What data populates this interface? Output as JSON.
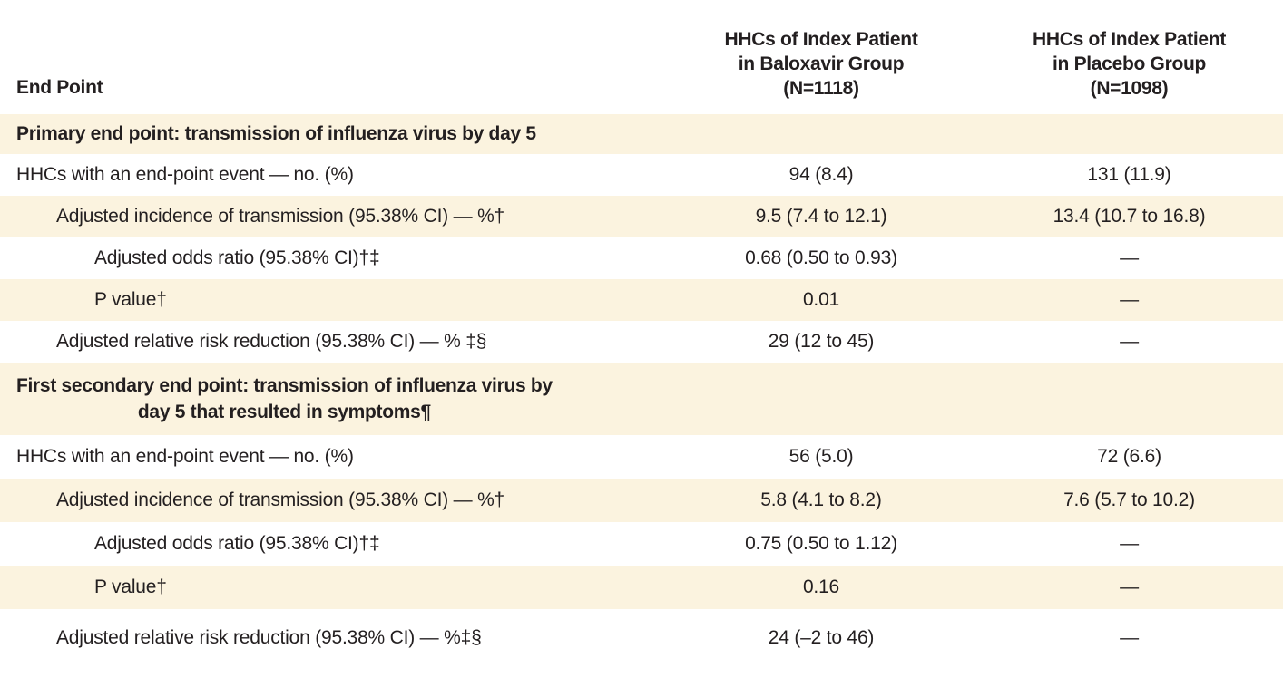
{
  "colors": {
    "row_stripe": "#FBF3DF",
    "text": "#231F20",
    "background": "#FFFFFF"
  },
  "table": {
    "columns": {
      "end_point": "End Point",
      "baloxavir": "HHCs of Index Patient\nin Baloxavir Group\n(N=1118)",
      "placebo": "HHCs of Index Patient\nin Placebo Group\n(N=1098)"
    },
    "rows": [
      {
        "label": "Primary end point: transmission of influenza virus by day 5",
        "baloxavir": "",
        "placebo": ""
      },
      {
        "label": "HHCs with an end-point event — no. (%)",
        "baloxavir": "94 (8.4)",
        "placebo": "131 (11.9)"
      },
      {
        "label": "Adjusted incidence of transmission (95.38% CI) — %†",
        "baloxavir": "9.5 (7.4 to 12.1)",
        "placebo": "13.4 (10.7 to 16.8)"
      },
      {
        "label": "Adjusted odds ratio (95.38% CI)†‡",
        "baloxavir": "0.68 (0.50 to 0.93)",
        "placebo": "—"
      },
      {
        "label": "P value†",
        "baloxavir": "0.01",
        "placebo": "—"
      },
      {
        "label": "Adjusted relative risk reduction (95.38% CI) — % ‡§",
        "baloxavir": "29 (12 to 45)",
        "placebo": "—"
      },
      {
        "label": "First secondary end point: transmission of influenza virus by\nday 5 that resulted in symptoms¶",
        "baloxavir": "",
        "placebo": ""
      },
      {
        "label": "HHCs with an end-point event — no. (%)",
        "baloxavir": "56 (5.0)",
        "placebo": "72 (6.6)"
      },
      {
        "label": "Adjusted incidence of transmission (95.38% CI) — %†",
        "baloxavir": "5.8 (4.1 to 8.2)",
        "placebo": "7.6 (5.7 to 10.2)"
      },
      {
        "label": "Adjusted odds ratio (95.38% CI)†‡",
        "baloxavir": "0.75 (0.50 to 1.12)",
        "placebo": "—"
      },
      {
        "label": "P value†",
        "baloxavir": "0.16",
        "placebo": "—"
      },
      {
        "label": "Adjusted relative risk reduction (95.38% CI) — %‡§",
        "baloxavir": "24 (–2 to 46)",
        "placebo": "—"
      }
    ]
  }
}
